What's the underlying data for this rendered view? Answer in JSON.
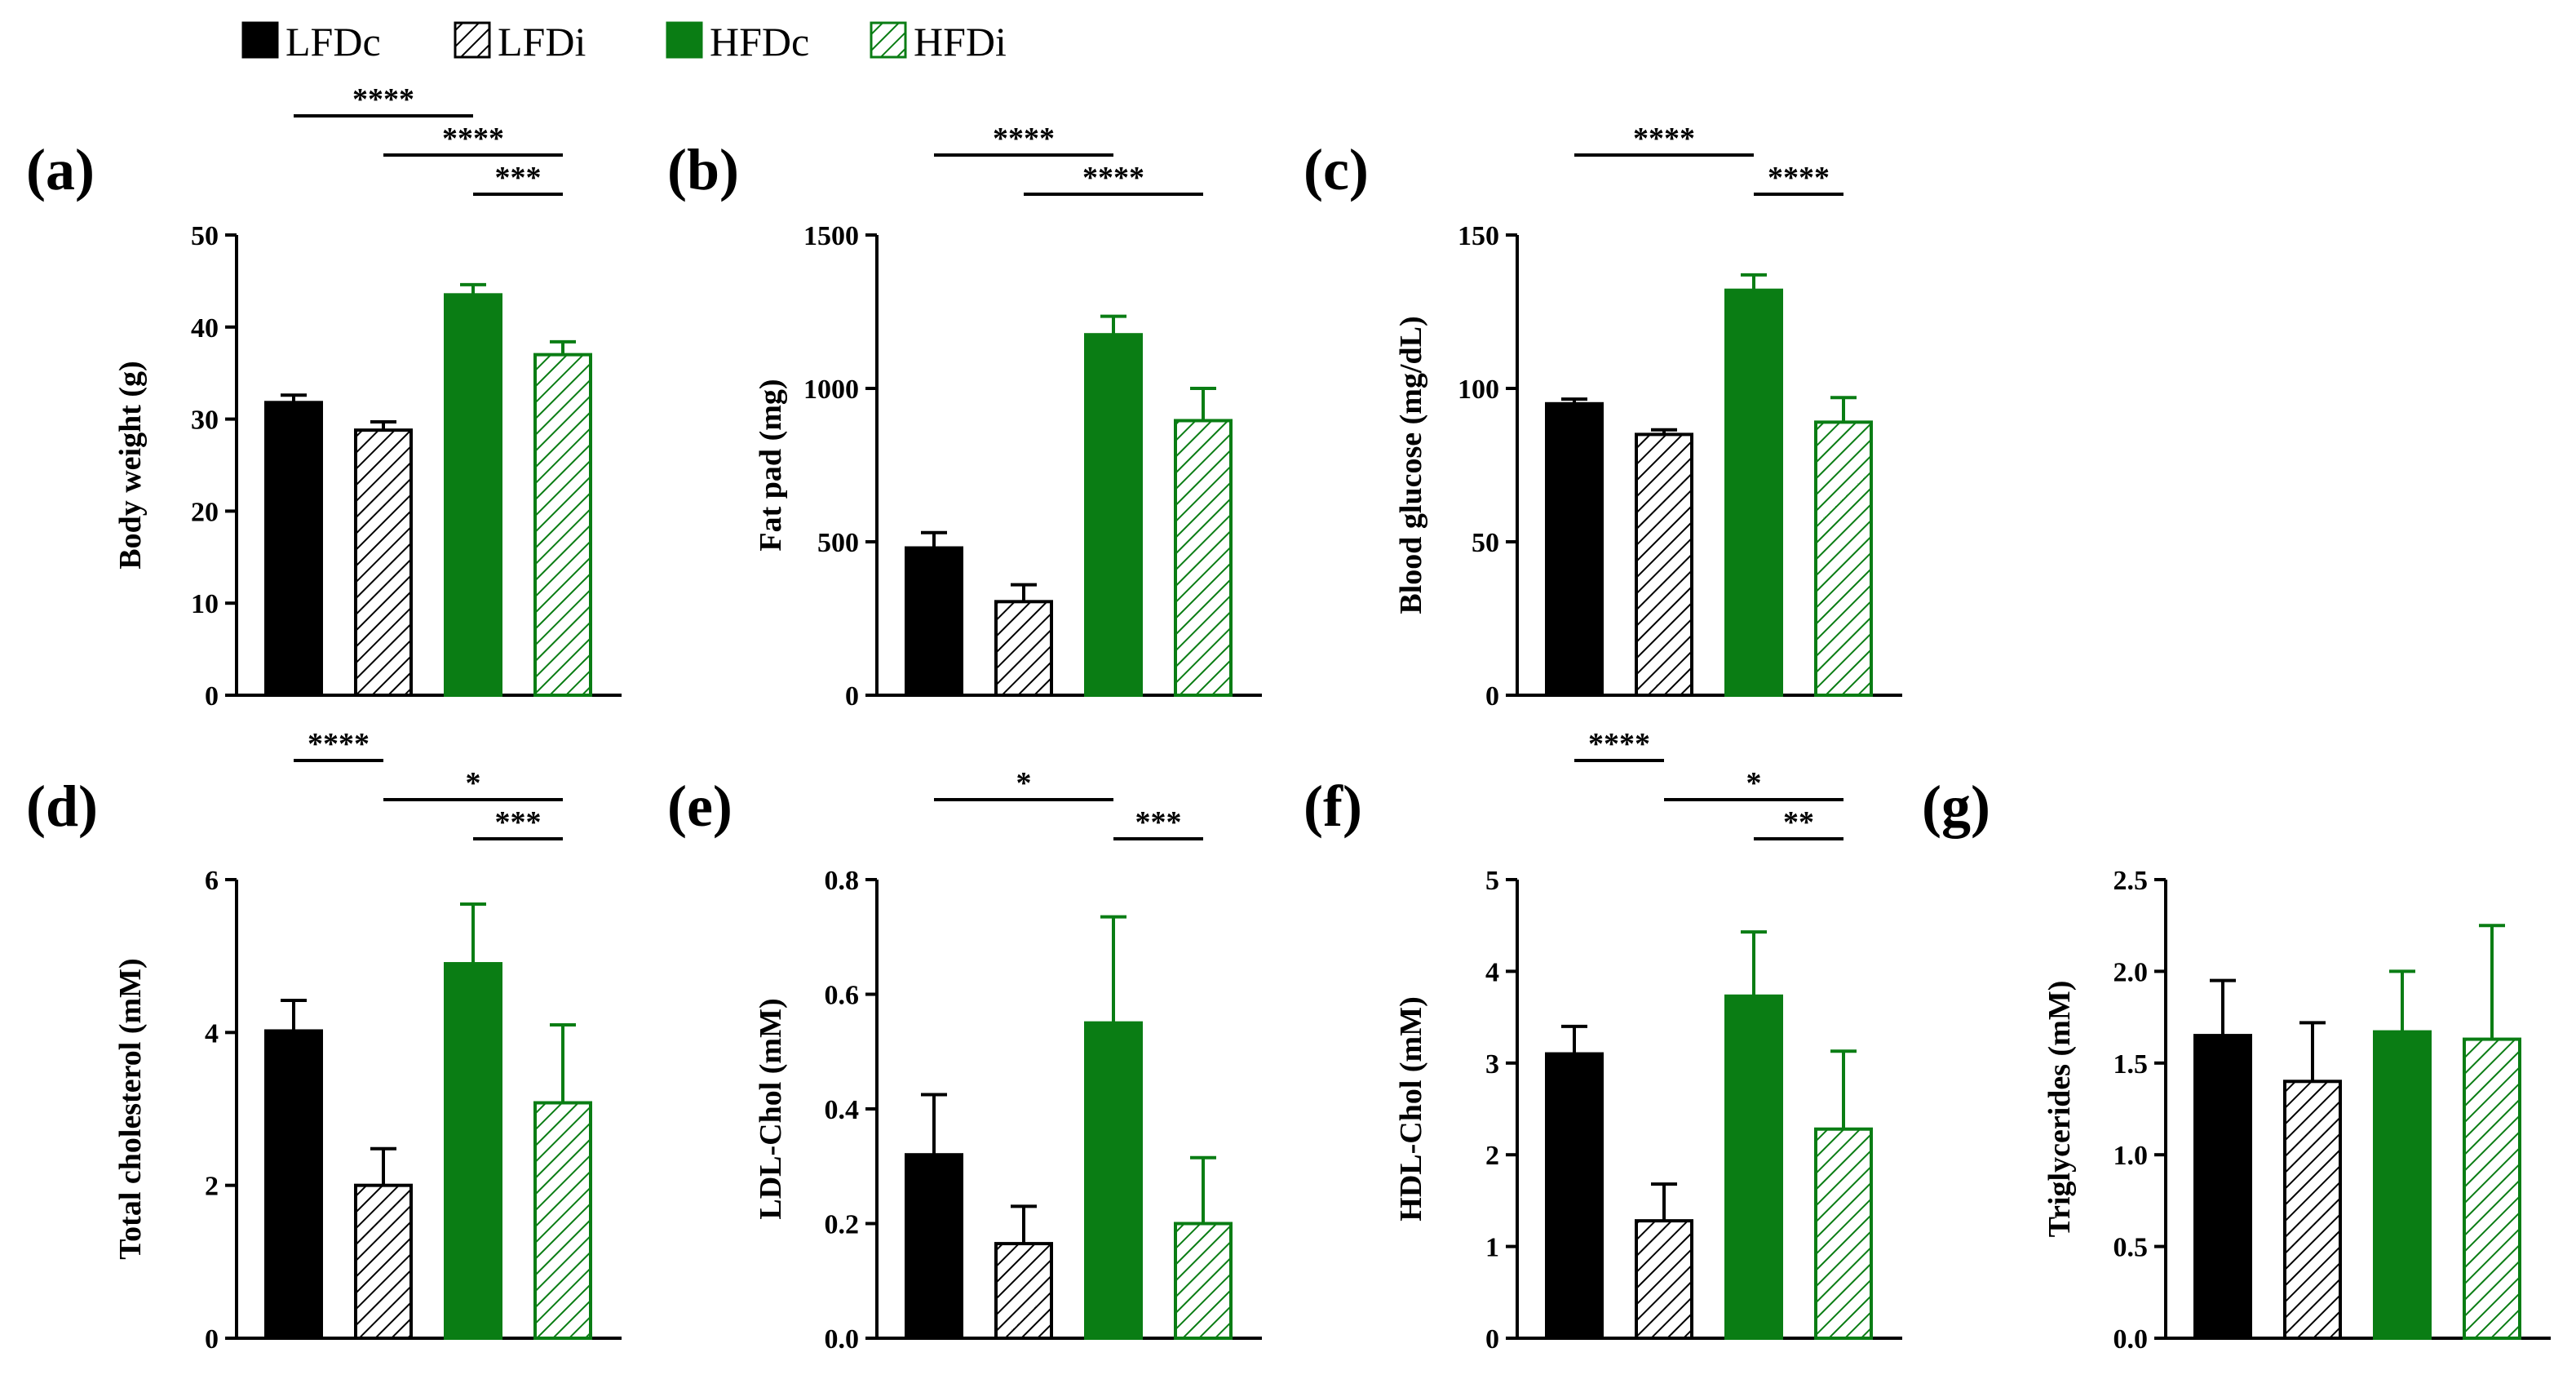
{
  "colors": {
    "dark": "#000000",
    "green": "#0a7d14",
    "hatch_dark": "#000000",
    "hatch_green": "#0a7d14"
  },
  "legend": [
    {
      "label": "LFDc",
      "style": "solid-dark"
    },
    {
      "label": "LFDi",
      "style": "hatch-dark"
    },
    {
      "label": "HFDc",
      "style": "solid-green"
    },
    {
      "label": "HFDi",
      "style": "hatch-green"
    }
  ],
  "chart_data": [
    {
      "type": "bar",
      "panel": "(a)",
      "ylabel": "Body weight (g)",
      "categories": [
        "LFDc",
        "LFDi",
        "HFDc",
        "HFDi"
      ],
      "values": [
        31.8,
        28.8,
        43.5,
        37.0
      ],
      "errors": [
        0.8,
        0.9,
        1.1,
        1.4
      ],
      "ylim": [
        0,
        50
      ],
      "ticks": [
        "0",
        "10",
        "20",
        "30",
        "40",
        "50"
      ],
      "tick_values": [
        0,
        10,
        20,
        30,
        40,
        50
      ],
      "significance": [
        {
          "from": 0,
          "to": 2,
          "label": "****"
        },
        {
          "from": 1,
          "to": 3,
          "label": "****"
        },
        {
          "from": 2,
          "to": 3,
          "label": "***"
        }
      ]
    },
    {
      "type": "bar",
      "panel": "(b)",
      "ylabel": "Fat pad (mg)",
      "categories": [
        "LFDc",
        "LFDi",
        "HFDc",
        "HFDi"
      ],
      "values": [
        480,
        305,
        1175,
        895
      ],
      "errors": [
        50,
        55,
        60,
        105
      ],
      "ylim": [
        0,
        1500
      ],
      "ticks": [
        "0",
        "500",
        "1000",
        "1500"
      ],
      "tick_values": [
        0,
        500,
        1000,
        1500
      ],
      "significance": [
        {
          "from": 0,
          "to": 2,
          "label": "****"
        },
        {
          "from": 1,
          "to": 3,
          "label": "****"
        }
      ]
    },
    {
      "type": "bar",
      "panel": "(c)",
      "ylabel": "Blood glucose (mg/dL)",
      "categories": [
        "LFDc",
        "LFDi",
        "HFDc",
        "HFDi"
      ],
      "values": [
        95,
        85,
        132,
        89
      ],
      "errors": [
        1.5,
        1.5,
        5,
        8
      ],
      "ylim": [
        0,
        150
      ],
      "ticks": [
        "0",
        "50",
        "100",
        "150"
      ],
      "tick_values": [
        0,
        50,
        100,
        150
      ],
      "significance": [
        {
          "from": 0,
          "to": 2,
          "label": "****"
        },
        {
          "from": 2,
          "to": 3,
          "label": "****"
        }
      ]
    },
    {
      "type": "bar",
      "panel": "(d)",
      "ylabel": "Total cholesterol (mM)",
      "categories": [
        "LFDc",
        "LFDi",
        "HFDc",
        "HFDi"
      ],
      "values": [
        4.02,
        2.0,
        4.9,
        3.08
      ],
      "errors": [
        0.4,
        0.48,
        0.78,
        1.02
      ],
      "ylim": [
        0,
        6
      ],
      "ticks": [
        "0",
        "2",
        "4",
        "6"
      ],
      "tick_values": [
        0,
        2,
        4,
        6
      ],
      "significance": [
        {
          "from": 0,
          "to": 1,
          "label": "****"
        },
        {
          "from": 1,
          "to": 3,
          "label": "*"
        },
        {
          "from": 2,
          "to": 3,
          "label": "***"
        }
      ]
    },
    {
      "type": "bar",
      "panel": "(e)",
      "ylabel": "LDL-Chol (mM)",
      "categories": [
        "LFDc",
        "LFDi",
        "HFDc",
        "HFDi"
      ],
      "values": [
        0.32,
        0.165,
        0.55,
        0.2
      ],
      "errors": [
        0.105,
        0.065,
        0.185,
        0.115
      ],
      "ylim": [
        0,
        0.8
      ],
      "ticks": [
        "0.0",
        "0.2",
        "0.4",
        "0.6",
        "0.8"
      ],
      "tick_values": [
        0,
        0.2,
        0.4,
        0.6,
        0.8
      ],
      "significance": [
        {
          "from": 0,
          "to": 2,
          "label": "*"
        },
        {
          "from": 2,
          "to": 3,
          "label": "***"
        }
      ]
    },
    {
      "type": "bar",
      "panel": "(f)",
      "ylabel": "HDL-Chol (mM)",
      "categories": [
        "LFDc",
        "LFDi",
        "HFDc",
        "HFDi"
      ],
      "values": [
        3.1,
        1.28,
        3.73,
        2.28
      ],
      "errors": [
        0.3,
        0.4,
        0.7,
        0.85
      ],
      "ylim": [
        0,
        5
      ],
      "ticks": [
        "0",
        "1",
        "2",
        "3",
        "4",
        "5"
      ],
      "tick_values": [
        0,
        1,
        2,
        3,
        4,
        5
      ],
      "significance": [
        {
          "from": 0,
          "to": 1,
          "label": "****"
        },
        {
          "from": 1,
          "to": 3,
          "label": "*"
        },
        {
          "from": 2,
          "to": 3,
          "label": "**"
        }
      ]
    },
    {
      "type": "bar",
      "panel": "(g)",
      "ylabel": "Triglycerides (mM)",
      "categories": [
        "LFDc",
        "LFDi",
        "HFDc",
        "HFDi"
      ],
      "values": [
        1.65,
        1.4,
        1.67,
        1.63
      ],
      "errors": [
        0.3,
        0.32,
        0.33,
        0.62
      ],
      "ylim": [
        0,
        2.5
      ],
      "ticks": [
        "0.0",
        "0.5",
        "1.0",
        "1.5",
        "2.0",
        "2.5"
      ],
      "tick_values": [
        0,
        0.5,
        1,
        1.5,
        2,
        2.5
      ],
      "significance": []
    }
  ]
}
